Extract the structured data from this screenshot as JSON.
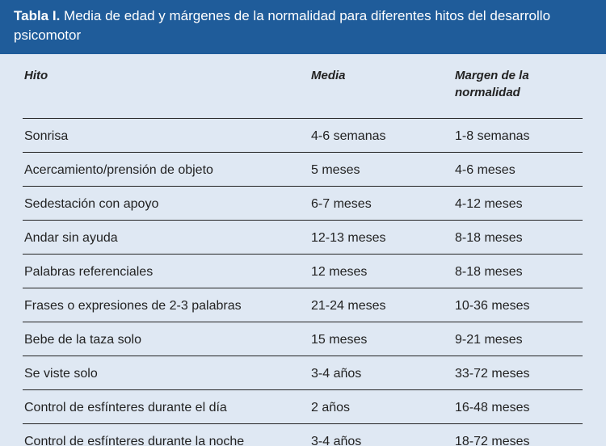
{
  "title": {
    "label": "Tabla I.",
    "text": "Media de edad y márgenes de la normalidad para diferentes hitos del desarrollo psicomotor"
  },
  "columns": [
    "Hito",
    "Media",
    "Margen de la normalidad"
  ],
  "rows": [
    [
      "Sonrisa",
      "4-6 semanas",
      "1-8 semanas"
    ],
    [
      "Acercamiento/prensión de objeto",
      "5 meses",
      "4-6 meses"
    ],
    [
      "Sedestación con apoyo",
      "6-7 meses",
      "4-12 meses"
    ],
    [
      "Andar sin ayuda",
      "12-13 meses",
      "8-18 meses"
    ],
    [
      "Palabras referenciales",
      "12 meses",
      "8-18 meses"
    ],
    [
      "Frases o expresiones de 2-3 palabras",
      "21-24 meses",
      "10-36 meses"
    ],
    [
      "Bebe de la taza solo",
      "15 meses",
      "9-21 meses"
    ],
    [
      "Se viste solo",
      "3-4 años",
      "33-72 meses"
    ],
    [
      "Control de esfínteres durante el día",
      "2 años",
      "16-48 meses"
    ],
    [
      "Control de esfínteres durante la noche",
      "3-4 años",
      "18-72 meses"
    ]
  ],
  "colors": {
    "title_bg": "#1f5c9a",
    "table_bg": "#dfe8f3"
  }
}
